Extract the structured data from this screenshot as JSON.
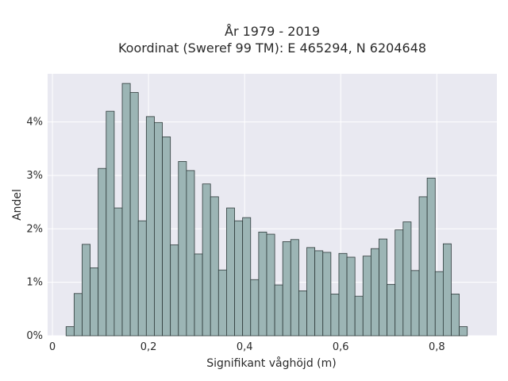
{
  "chart_data": {
    "type": "bar",
    "title": [
      "År 1979 - 2019",
      "Koordinat (Sweref 99 TM): E 465294, N 6204648"
    ],
    "xlabel": "Signifikant våghöjd (m)",
    "ylabel": "Andel",
    "xlim": [
      -0.01,
      0.925
    ],
    "ylim": [
      0,
      4.9
    ],
    "grid": true,
    "x_ticks": [
      {
        "value": 0,
        "label": "0"
      },
      {
        "value": 0.2,
        "label": "0,2"
      },
      {
        "value": 0.4,
        "label": "0,4"
      },
      {
        "value": 0.6,
        "label": "0,6"
      },
      {
        "value": 0.8,
        "label": "0,8"
      }
    ],
    "y_ticks": [
      {
        "value": 0,
        "label": "0%"
      },
      {
        "value": 1,
        "label": "1%"
      },
      {
        "value": 2,
        "label": "2%"
      },
      {
        "value": 3,
        "label": "3%"
      },
      {
        "value": 4,
        "label": "4%"
      }
    ],
    "bin_width": 0.0167,
    "bins_start": [
      0.0284,
      0.0451,
      0.0618,
      0.0785,
      0.0952,
      0.1119,
      0.1286,
      0.1453,
      0.162,
      0.1787,
      0.1954,
      0.2121,
      0.2288,
      0.2455,
      0.2622,
      0.2789,
      0.2956,
      0.3123,
      0.329,
      0.3457,
      0.3624,
      0.3791,
      0.3958,
      0.4125,
      0.4292,
      0.4459,
      0.4626,
      0.4793,
      0.496,
      0.5127,
      0.5294,
      0.5461,
      0.5628,
      0.5795,
      0.5962,
      0.6129,
      0.6296,
      0.6463,
      0.663,
      0.6797,
      0.6964,
      0.7131,
      0.7298,
      0.7465,
      0.7632,
      0.7799,
      0.7966,
      0.8133,
      0.83,
      0.8467
    ],
    "values": [
      0.17,
      0.79,
      1.71,
      1.27,
      3.13,
      4.2,
      2.39,
      4.72,
      4.55,
      2.15,
      4.1,
      3.99,
      3.72,
      1.7,
      3.26,
      3.09,
      1.53,
      2.84,
      2.6,
      1.23,
      2.39,
      2.15,
      2.21,
      1.05,
      1.94,
      1.9,
      0.95,
      1.76,
      1.8,
      0.84,
      1.65,
      1.59,
      1.56,
      0.78,
      1.54,
      1.47,
      0.74,
      1.49,
      1.63,
      1.81,
      0.96,
      1.98,
      2.13,
      1.22,
      2.6,
      2.95,
      1.2,
      1.72,
      0.78,
      0.17
    ]
  }
}
